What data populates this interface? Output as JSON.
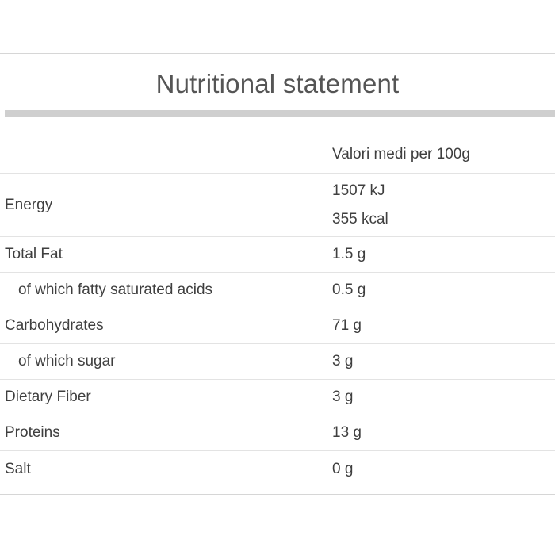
{
  "title": "Nutritional statement",
  "header": {
    "nutrient_label": "",
    "value_label": "Valori medi per 100g"
  },
  "rows": [
    {
      "label": "Energy",
      "values": [
        "1507 kJ",
        "355 kcal"
      ],
      "indent": false
    },
    {
      "label": "Total Fat",
      "value": "1.5 g",
      "indent": false
    },
    {
      "label": "of which fatty saturated acids",
      "value": "0.5 g",
      "indent": true
    },
    {
      "label": "Carbohydrates",
      "value": "71 g",
      "indent": false
    },
    {
      "label": "of which sugar",
      "value": "3 g",
      "indent": true
    },
    {
      "label": "Dietary Fiber",
      "value": "3 g",
      "indent": false
    },
    {
      "label": "Proteins",
      "value": "13 g",
      "indent": false
    },
    {
      "label": "Salt",
      "value": "0 g",
      "indent": false
    }
  ]
}
